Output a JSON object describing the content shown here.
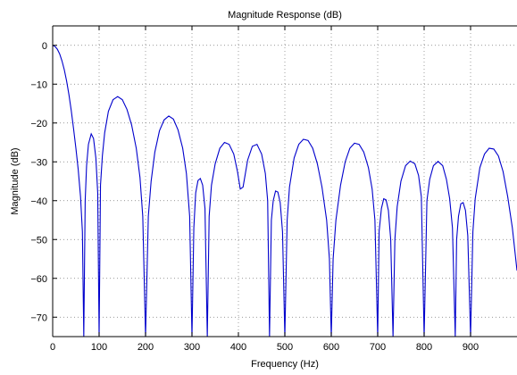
{
  "chart_data": {
    "type": "line",
    "title": "Magnitude Response (dB)",
    "xlabel": "Frequency (Hz)",
    "ylabel": "Magnitude (dB)",
    "xlim": [
      0,
      1000
    ],
    "ylim": [
      -75,
      5
    ],
    "xticks": [
      0,
      100,
      200,
      300,
      400,
      500,
      600,
      700,
      800,
      900
    ],
    "yticks": [
      0,
      -10,
      -20,
      -30,
      -40,
      -50,
      -60,
      -70
    ],
    "grid": true,
    "series": [
      {
        "color": "#0000cc",
        "zeros": [
          67,
          100,
          200,
          300,
          333,
          467,
          500,
          600,
          700,
          733,
          800,
          867,
          900
        ],
        "points": [
          [
            0,
            0
          ],
          [
            5,
            -0.3
          ],
          [
            10,
            -1
          ],
          [
            15,
            -2.2
          ],
          [
            20,
            -4
          ],
          [
            25,
            -6.3
          ],
          [
            30,
            -9.2
          ],
          [
            35,
            -12.7
          ],
          [
            40,
            -16.8
          ],
          [
            45,
            -21.5
          ],
          [
            50,
            -26.5
          ],
          [
            55,
            -32
          ],
          [
            60,
            -39
          ],
          [
            64,
            -48
          ],
          [
            67,
            -75
          ],
          [
            70,
            -40
          ],
          [
            73,
            -31
          ],
          [
            77,
            -25.5
          ],
          [
            83,
            -22.8
          ],
          [
            88,
            -24
          ],
          [
            93,
            -29
          ],
          [
            97,
            -38
          ],
          [
            100,
            -75
          ],
          [
            103,
            -36
          ],
          [
            107,
            -28.5
          ],
          [
            112,
            -22.5
          ],
          [
            120,
            -17
          ],
          [
            130,
            -14
          ],
          [
            140,
            -13.2
          ],
          [
            150,
            -14
          ],
          [
            160,
            -16.5
          ],
          [
            170,
            -20.5
          ],
          [
            180,
            -26.5
          ],
          [
            188,
            -34
          ],
          [
            194,
            -44
          ],
          [
            200,
            -75
          ],
          [
            206,
            -44
          ],
          [
            212,
            -35
          ],
          [
            220,
            -27.5
          ],
          [
            230,
            -22
          ],
          [
            240,
            -19.2
          ],
          [
            250,
            -18.2
          ],
          [
            260,
            -19
          ],
          [
            270,
            -21.8
          ],
          [
            280,
            -26.5
          ],
          [
            288,
            -33
          ],
          [
            295,
            -44
          ],
          [
            300,
            -75
          ],
          [
            304,
            -47
          ],
          [
            308,
            -38
          ],
          [
            313,
            -34.8
          ],
          [
            318,
            -34.3
          ],
          [
            323,
            -36
          ],
          [
            328,
            -42
          ],
          [
            333,
            -75
          ],
          [
            337,
            -44
          ],
          [
            342,
            -36
          ],
          [
            350,
            -30.5
          ],
          [
            360,
            -26.5
          ],
          [
            370,
            -25
          ],
          [
            380,
            -25.5
          ],
          [
            390,
            -28
          ],
          [
            398,
            -32.5
          ],
          [
            404,
            -37
          ],
          [
            410,
            -36.5
          ],
          [
            420,
            -29.5
          ],
          [
            430,
            -26
          ],
          [
            440,
            -25.5
          ],
          [
            450,
            -28
          ],
          [
            458,
            -33
          ],
          [
            463,
            -40
          ],
          [
            467,
            -75
          ],
          [
            471,
            -45
          ],
          [
            475,
            -40
          ],
          [
            480,
            -37.5
          ],
          [
            485,
            -37.8
          ],
          [
            490,
            -40.5
          ],
          [
            495,
            -48
          ],
          [
            500,
            -75
          ],
          [
            505,
            -45
          ],
          [
            510,
            -36.5
          ],
          [
            520,
            -29
          ],
          [
            530,
            -25.5
          ],
          [
            540,
            -24.2
          ],
          [
            550,
            -24.5
          ],
          [
            560,
            -26.5
          ],
          [
            570,
            -30.5
          ],
          [
            580,
            -36.5
          ],
          [
            590,
            -45
          ],
          [
            596,
            -55
          ],
          [
            600,
            -75
          ],
          [
            604,
            -55
          ],
          [
            610,
            -45
          ],
          [
            620,
            -36
          ],
          [
            630,
            -30
          ],
          [
            640,
            -26.5
          ],
          [
            650,
            -25.2
          ],
          [
            660,
            -25.5
          ],
          [
            670,
            -27.5
          ],
          [
            680,
            -31.5
          ],
          [
            688,
            -37
          ],
          [
            694,
            -45
          ],
          [
            700,
            -75
          ],
          [
            703,
            -48
          ],
          [
            708,
            -42
          ],
          [
            713,
            -39.5
          ],
          [
            718,
            -39.8
          ],
          [
            723,
            -42.5
          ],
          [
            728,
            -50
          ],
          [
            733,
            -75
          ],
          [
            737,
            -50
          ],
          [
            742,
            -41.5
          ],
          [
            750,
            -35
          ],
          [
            760,
            -31
          ],
          [
            770,
            -29.8
          ],
          [
            780,
            -30.5
          ],
          [
            788,
            -33.5
          ],
          [
            794,
            -39
          ],
          [
            800,
            -75
          ],
          [
            806,
            -40
          ],
          [
            812,
            -34.5
          ],
          [
            820,
            -31
          ],
          [
            830,
            -29.9
          ],
          [
            840,
            -31
          ],
          [
            848,
            -34.5
          ],
          [
            855,
            -39.5
          ],
          [
            861,
            -47
          ],
          [
            867,
            -75
          ],
          [
            870,
            -50
          ],
          [
            874,
            -44
          ],
          [
            879,
            -40.8
          ],
          [
            884,
            -40.5
          ],
          [
            889,
            -42.5
          ],
          [
            894,
            -49
          ],
          [
            900,
            -75
          ],
          [
            905,
            -48
          ],
          [
            910,
            -39.5
          ],
          [
            920,
            -31.5
          ],
          [
            930,
            -28
          ],
          [
            940,
            -26.5
          ],
          [
            950,
            -26.7
          ],
          [
            960,
            -28.5
          ],
          [
            970,
            -32.5
          ],
          [
            980,
            -39
          ],
          [
            990,
            -47
          ],
          [
            1000,
            -58
          ]
        ]
      }
    ]
  }
}
